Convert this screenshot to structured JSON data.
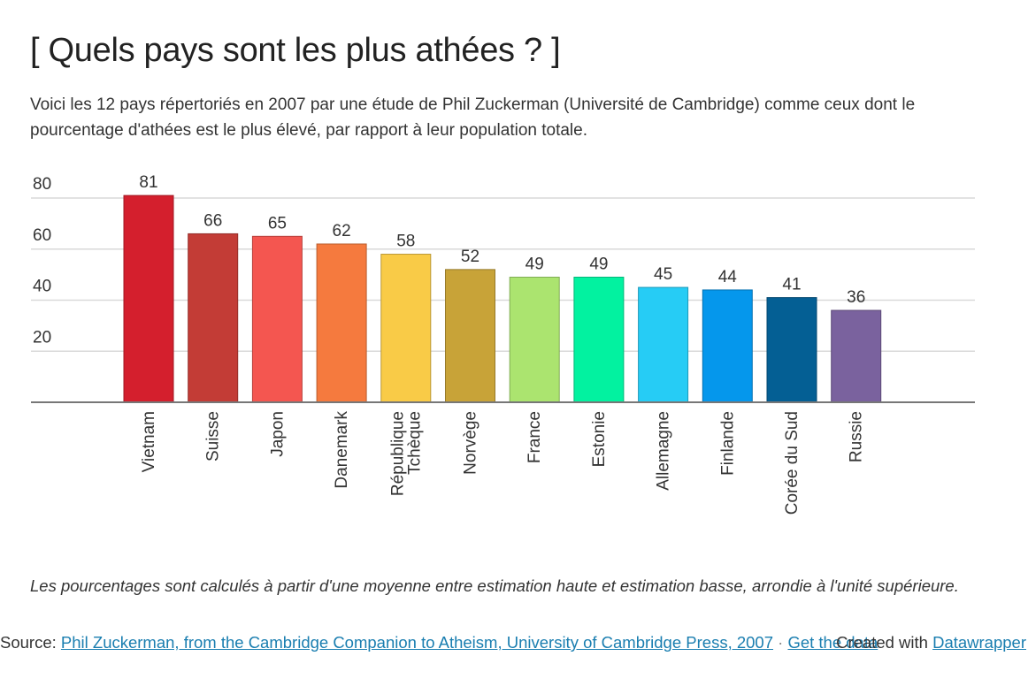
{
  "header": {
    "title": "[ Quels pays sont les plus athées ? ]",
    "intro": "Voici les 12 pays répertoriés en 2007 par une étude de Phil Zuckerman (Université de Cambridge) comme ceux dont le pourcentage d'athées est le plus élevé, par rapport à leur population totale."
  },
  "notes": "Les pourcentages sont calculés à partir d'une moyenne entre estimation haute et estimation basse, arrondie à l'unité supérieure.",
  "footer": {
    "source_label": "Source: ",
    "source_link": "Phil Zuckerman, from the Cambridge Companion to Atheism, University of Cambridge Press, 2007",
    "separator": " · ",
    "get_data_link": "Get the data",
    "created_with": "Created with ",
    "datawrapper_link": "Datawrapper"
  },
  "chart_data": {
    "type": "bar",
    "title": "[ Quels pays sont les plus athées ? ]",
    "xlabel": "",
    "ylabel": "",
    "ylim": [
      0,
      80
    ],
    "yticks": [
      20,
      40,
      60,
      80
    ],
    "grid": true,
    "legend": "none",
    "categories": [
      "Vietnam",
      "Suisse",
      "Japon",
      "Danemark",
      "République Tchèque",
      "Norvège",
      "France",
      "Estonie",
      "Allemagne",
      "Finlande",
      "Corée du Sud",
      "Russie"
    ],
    "category_lines": [
      [
        "Vietnam"
      ],
      [
        "Suisse"
      ],
      [
        "Japon"
      ],
      [
        "Danemark"
      ],
      [
        "République",
        "Tchèque"
      ],
      [
        "Norvège"
      ],
      [
        "France"
      ],
      [
        "Estonie"
      ],
      [
        "Allemagne"
      ],
      [
        "Finlande"
      ],
      [
        "Corée du Sud"
      ],
      [
        "Russie"
      ]
    ],
    "values": [
      81,
      66,
      65,
      62,
      58,
      52,
      49,
      49,
      45,
      44,
      41,
      36
    ],
    "colors": [
      "#d41f2d",
      "#c33c36",
      "#f45650",
      "#f57a3e",
      "#f9cb47",
      "#c8a338",
      "#abe46f",
      "#02f2a0",
      "#26ccf5",
      "#0597ec",
      "#045f94",
      "#7a629e"
    ],
    "data_labels": [
      "81",
      "66",
      "65",
      "62",
      "58",
      "52",
      "49",
      "49",
      "45",
      "44",
      "41",
      "36"
    ]
  }
}
